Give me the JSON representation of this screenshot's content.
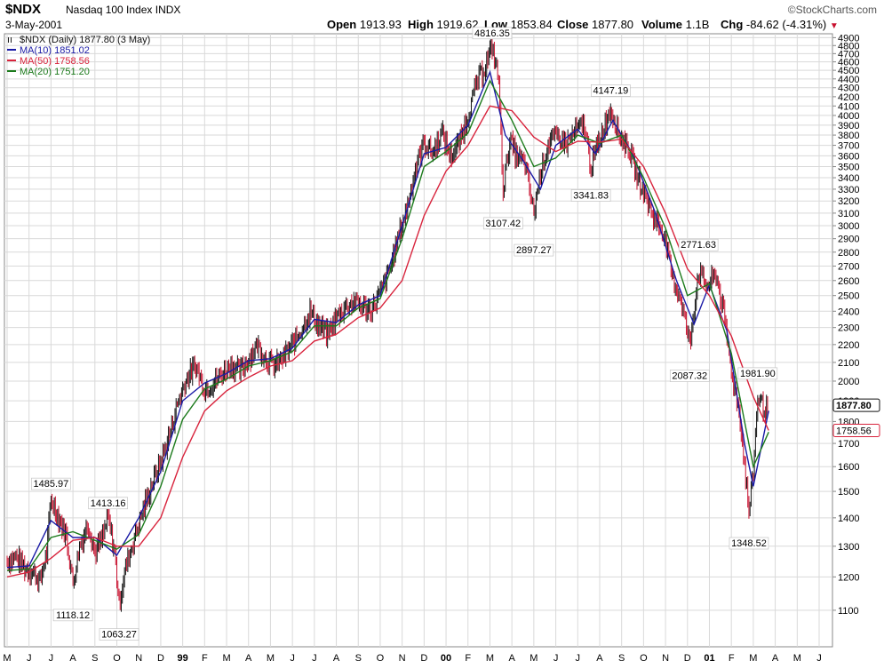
{
  "header": {
    "symbol": "$NDX",
    "name": "Nasdaq 100 Index",
    "exchange": "INDX",
    "date": "3-May-2001",
    "brand": "©StockCharts.com",
    "open_label": "Open",
    "open": "1913.93",
    "high_label": "High",
    "high": "1919.62",
    "low_label": "Low",
    "low": "1853.84",
    "close_label": "Close",
    "close": "1877.80",
    "volume_label": "Volume",
    "volume": "1.1B",
    "chg_label": "Chg",
    "chg": "-84.62 (-4.31%)"
  },
  "legend": {
    "price": "$NDX (Daily) 1877.80 (3 May)",
    "ma10": "MA(10) 1851.02",
    "ma50": "MA(50) 1758.56",
    "ma20": "MA(20) 1751.20"
  },
  "colors": {
    "price": "#111111",
    "down_bar": "#c8102e",
    "ma10": "#1a1aa6",
    "ma50": "#d8233c",
    "ma20": "#1b7a1b",
    "grid": "#d9d9d9"
  },
  "chart_data": {
    "type": "line",
    "title": "$NDX Nasdaq 100 Index INDX",
    "y_scale": "log",
    "ylim": [
      1000,
      4950
    ],
    "y_ticks": [
      1100,
      1200,
      1300,
      1400,
      1500,
      1600,
      1700,
      1800,
      1900,
      2000,
      2100,
      2200,
      2300,
      2400,
      2500,
      2600,
      2700,
      2800,
      2900,
      3000,
      3100,
      3200,
      3300,
      3400,
      3500,
      3600,
      3700,
      3800,
      3900,
      4000,
      4100,
      4200,
      4300,
      4400,
      4500,
      4600,
      4700,
      4800,
      4900
    ],
    "x_ticks": [
      "M",
      "J",
      "J",
      "A",
      "S",
      "O",
      "N",
      "D",
      "99",
      "F",
      "M",
      "A",
      "M",
      "J",
      "J",
      "A",
      "S",
      "O",
      "N",
      "D",
      "00",
      "F",
      "M",
      "A",
      "M",
      "J",
      "J",
      "A",
      "S",
      "O",
      "N",
      "D",
      "01",
      "F",
      "M",
      "A",
      "M",
      "J"
    ],
    "x_tick_bold": [
      "99",
      "00",
      "01"
    ],
    "grid": true,
    "legend_position": "top-left",
    "right_labels": [
      "1877.80",
      "1758.56"
    ],
    "annotations": [
      {
        "label": "1485.97",
        "month": 2.0,
        "value": 1485.97
      },
      {
        "label": "1413.16",
        "month": 4.6,
        "value": 1413.16
      },
      {
        "label": "1118.12",
        "month": 3.0,
        "value": 1118.12
      },
      {
        "label": "1063.27",
        "month": 5.1,
        "value": 1063.27
      },
      {
        "label": "4816.35",
        "month": 22.1,
        "value": 4816.35
      },
      {
        "label": "3107.42",
        "month": 22.6,
        "value": 3107.42
      },
      {
        "label": "2897.27",
        "month": 24.0,
        "value": 2897.27
      },
      {
        "label": "3341.83",
        "month": 26.6,
        "value": 3341.83
      },
      {
        "label": "4147.19",
        "month": 27.5,
        "value": 4147.19
      },
      {
        "label": "2771.63",
        "month": 31.5,
        "value": 2771.63
      },
      {
        "label": "2087.32",
        "month": 31.1,
        "value": 2087.32
      },
      {
        "label": "1981.90",
        "month": 34.2,
        "value": 1981.9
      },
      {
        "label": "1348.52",
        "month": 33.8,
        "value": 1348.52
      }
    ],
    "series": [
      {
        "name": "$NDX",
        "style": "ohlc-bars",
        "points": [
          [
            0,
            1250
          ],
          [
            0.4,
            1265
          ],
          [
            0.8,
            1230
          ],
          [
            1.2,
            1215
          ],
          [
            1.5,
            1185
          ],
          [
            1.8,
            1280
          ],
          [
            2.0,
            1470
          ],
          [
            2.3,
            1410
          ],
          [
            2.7,
            1335
          ],
          [
            3.0,
            1180
          ],
          [
            3.3,
            1300
          ],
          [
            3.7,
            1380
          ],
          [
            4.0,
            1280
          ],
          [
            4.3,
            1320
          ],
          [
            4.6,
            1400
          ],
          [
            4.9,
            1280
          ],
          [
            5.1,
            1120
          ],
          [
            5.4,
            1230
          ],
          [
            5.8,
            1330
          ],
          [
            6.2,
            1430
          ],
          [
            6.6,
            1530
          ],
          [
            7.0,
            1620
          ],
          [
            7.4,
            1740
          ],
          [
            7.8,
            1900
          ],
          [
            8.2,
            2020
          ],
          [
            8.6,
            2080
          ],
          [
            9.0,
            1960
          ],
          [
            9.4,
            1990
          ],
          [
            9.8,
            2040
          ],
          [
            10.2,
            2090
          ],
          [
            10.6,
            2050
          ],
          [
            11.0,
            2120
          ],
          [
            11.4,
            2200
          ],
          [
            11.8,
            2120
          ],
          [
            12.2,
            2080
          ],
          [
            12.6,
            2130
          ],
          [
            13.0,
            2200
          ],
          [
            13.4,
            2290
          ],
          [
            13.8,
            2400
          ],
          [
            14.2,
            2310
          ],
          [
            14.6,
            2260
          ],
          [
            15.0,
            2360
          ],
          [
            15.4,
            2430
          ],
          [
            15.8,
            2460
          ],
          [
            16.2,
            2430
          ],
          [
            16.6,
            2410
          ],
          [
            17.0,
            2520
          ],
          [
            17.4,
            2660
          ],
          [
            17.8,
            2900
          ],
          [
            18.2,
            3130
          ],
          [
            18.6,
            3480
          ],
          [
            19.0,
            3730
          ],
          [
            19.4,
            3630
          ],
          [
            19.8,
            3830
          ],
          [
            20.2,
            3600
          ],
          [
            20.6,
            3720
          ],
          [
            21.0,
            4000
          ],
          [
            21.4,
            4360
          ],
          [
            21.8,
            4560
          ],
          [
            22.1,
            4800
          ],
          [
            22.4,
            4380
          ],
          [
            22.6,
            3300
          ],
          [
            22.9,
            3750
          ],
          [
            23.2,
            3600
          ],
          [
            23.6,
            3520
          ],
          [
            24.0,
            3100
          ],
          [
            24.3,
            3450
          ],
          [
            24.7,
            3740
          ],
          [
            25.1,
            3780
          ],
          [
            25.5,
            3720
          ],
          [
            25.9,
            3840
          ],
          [
            26.3,
            3900
          ],
          [
            26.6,
            3500
          ],
          [
            27.0,
            3760
          ],
          [
            27.5,
            4080
          ],
          [
            27.9,
            3800
          ],
          [
            28.3,
            3680
          ],
          [
            28.7,
            3420
          ],
          [
            29.1,
            3230
          ],
          [
            29.5,
            3050
          ],
          [
            29.9,
            2960
          ],
          [
            30.3,
            2620
          ],
          [
            30.7,
            2480
          ],
          [
            31.1,
            2200
          ],
          [
            31.5,
            2660
          ],
          [
            31.9,
            2560
          ],
          [
            32.3,
            2640
          ],
          [
            32.6,
            2430
          ],
          [
            33.0,
            2060
          ],
          [
            33.4,
            1820
          ],
          [
            33.8,
            1420
          ],
          [
            34.0,
            1580
          ],
          [
            34.2,
            1920
          ],
          [
            34.5,
            1860
          ],
          [
            34.7,
            1880
          ]
        ]
      },
      {
        "name": "MA(10)",
        "style": "line",
        "points": [
          [
            0,
            1230
          ],
          [
            1.0,
            1235
          ],
          [
            2.0,
            1390
          ],
          [
            3.0,
            1330
          ],
          [
            4.0,
            1330
          ],
          [
            5.0,
            1270
          ],
          [
            6.0,
            1400
          ],
          [
            7.0,
            1580
          ],
          [
            8.0,
            1900
          ],
          [
            9.0,
            1990
          ],
          [
            10.0,
            2040
          ],
          [
            11.0,
            2110
          ],
          [
            12.0,
            2120
          ],
          [
            13.0,
            2180
          ],
          [
            14.0,
            2350
          ],
          [
            15.0,
            2330
          ],
          [
            16.0,
            2440
          ],
          [
            17.0,
            2500
          ],
          [
            18.0,
            3000
          ],
          [
            19.0,
            3620
          ],
          [
            20.0,
            3680
          ],
          [
            21.0,
            3900
          ],
          [
            22.0,
            4480
          ],
          [
            22.7,
            3800
          ],
          [
            23.5,
            3560
          ],
          [
            24.3,
            3300
          ],
          [
            25.0,
            3700
          ],
          [
            26.0,
            3860
          ],
          [
            26.8,
            3620
          ],
          [
            27.6,
            3950
          ],
          [
            28.5,
            3620
          ],
          [
            29.5,
            3120
          ],
          [
            30.5,
            2600
          ],
          [
            31.3,
            2320
          ],
          [
            32.0,
            2570
          ],
          [
            32.8,
            2280
          ],
          [
            33.6,
            1700
          ],
          [
            34.0,
            1520
          ],
          [
            34.7,
            1851
          ]
        ]
      },
      {
        "name": "MA(20)",
        "style": "line",
        "points": [
          [
            0,
            1220
          ],
          [
            1.0,
            1225
          ],
          [
            2.0,
            1330
          ],
          [
            3.0,
            1350
          ],
          [
            4.0,
            1320
          ],
          [
            5.0,
            1290
          ],
          [
            6.0,
            1340
          ],
          [
            7.0,
            1520
          ],
          [
            8.0,
            1810
          ],
          [
            9.0,
            1960
          ],
          [
            10.0,
            2010
          ],
          [
            11.0,
            2080
          ],
          [
            12.0,
            2110
          ],
          [
            13.0,
            2160
          ],
          [
            14.0,
            2310
          ],
          [
            15.0,
            2310
          ],
          [
            16.0,
            2420
          ],
          [
            17.0,
            2480
          ],
          [
            18.0,
            2900
          ],
          [
            19.0,
            3500
          ],
          [
            20.0,
            3640
          ],
          [
            21.0,
            3820
          ],
          [
            22.0,
            4380
          ],
          [
            23.0,
            3950
          ],
          [
            24.0,
            3500
          ],
          [
            25.0,
            3580
          ],
          [
            26.0,
            3800
          ],
          [
            27.0,
            3720
          ],
          [
            28.0,
            3800
          ],
          [
            29.0,
            3400
          ],
          [
            30.0,
            2980
          ],
          [
            31.0,
            2500
          ],
          [
            32.0,
            2580
          ],
          [
            33.0,
            2150
          ],
          [
            34.0,
            1600
          ],
          [
            34.7,
            1751
          ]
        ]
      },
      {
        "name": "MA(50)",
        "style": "line",
        "points": [
          [
            0,
            1200
          ],
          [
            1.0,
            1215
          ],
          [
            2.0,
            1260
          ],
          [
            3.0,
            1320
          ],
          [
            4.0,
            1330
          ],
          [
            5.0,
            1300
          ],
          [
            6.0,
            1300
          ],
          [
            7.0,
            1400
          ],
          [
            8.0,
            1640
          ],
          [
            9.0,
            1850
          ],
          [
            10.0,
            1950
          ],
          [
            11.0,
            2020
          ],
          [
            12.0,
            2080
          ],
          [
            13.0,
            2110
          ],
          [
            14.0,
            2220
          ],
          [
            15.0,
            2260
          ],
          [
            16.0,
            2360
          ],
          [
            17.0,
            2420
          ],
          [
            18.0,
            2600
          ],
          [
            19.0,
            3080
          ],
          [
            20.0,
            3460
          ],
          [
            21.0,
            3700
          ],
          [
            22.0,
            4100
          ],
          [
            23.0,
            4050
          ],
          [
            24.0,
            3780
          ],
          [
            25.0,
            3640
          ],
          [
            26.0,
            3740
          ],
          [
            27.0,
            3730
          ],
          [
            28.0,
            3760
          ],
          [
            29.0,
            3500
          ],
          [
            30.0,
            3100
          ],
          [
            31.0,
            2680
          ],
          [
            32.0,
            2500
          ],
          [
            33.0,
            2250
          ],
          [
            34.0,
            1920
          ],
          [
            34.7,
            1758.56
          ]
        ]
      }
    ]
  }
}
